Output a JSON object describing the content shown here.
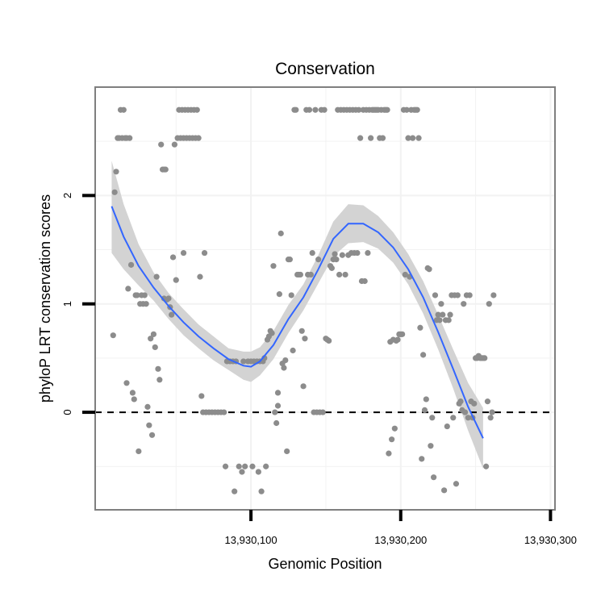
{
  "chart_data": {
    "type": "scatter",
    "title": "Conservation",
    "xlabel": "Genomic Position",
    "ylabel": "phyloP LRT conservation scores",
    "x_ticks": [
      {
        "value": 13930100,
        "label": "13,930,100"
      },
      {
        "value": 13930200,
        "label": "13,930,200"
      },
      {
        "value": 13930300,
        "label": "13,930,300"
      }
    ],
    "y_ticks": [
      {
        "value": 0,
        "label": "0"
      },
      {
        "value": 1,
        "label": "1"
      },
      {
        "value": 2,
        "label": "2"
      }
    ],
    "xlim": [
      13929996,
      13930303
    ],
    "ylim": [
      -0.9,
      3.0
    ],
    "grid": true,
    "reference_line": {
      "y": 0,
      "style": "dashed",
      "color": "#000000"
    },
    "colors": {
      "points": "#8c8c8c",
      "smooth_line": "#3366ff",
      "confidence_band": "#d3d3d3",
      "grid": "#f2f2f2",
      "panel_border": "#7f7f7f"
    },
    "points": [
      {
        "x": 13930008,
        "y": 0.71
      },
      {
        "x": 13930009,
        "y": 2.03
      },
      {
        "x": 13930010,
        "y": 2.22
      },
      {
        "x": 13930011,
        "y": 2.53
      },
      {
        "x": 13930012,
        "y": 2.53
      },
      {
        "x": 13930013,
        "y": 2.79
      },
      {
        "x": 13930014,
        "y": 2.53
      },
      {
        "x": 13930015,
        "y": 2.79
      },
      {
        "x": 13930016,
        "y": 2.53
      },
      {
        "x": 13930017,
        "y": 2.53
      },
      {
        "x": 13930017,
        "y": 0.27
      },
      {
        "x": 13930018,
        "y": 1.14
      },
      {
        "x": 13930019,
        "y": 2.53
      },
      {
        "x": 13930020,
        "y": 1.36
      },
      {
        "x": 13930021,
        "y": 0.18
      },
      {
        "x": 13930022,
        "y": 0.12
      },
      {
        "x": 13930023,
        "y": 1.08
      },
      {
        "x": 13930024,
        "y": 1.08
      },
      {
        "x": 13930025,
        "y": -0.36
      },
      {
        "x": 13930026,
        "y": 1.0
      },
      {
        "x": 13930027,
        "y": 1.08
      },
      {
        "x": 13930028,
        "y": 1.0
      },
      {
        "x": 13930029,
        "y": 1.08
      },
      {
        "x": 13930030,
        "y": 1.0
      },
      {
        "x": 13930031,
        "y": 0.05
      },
      {
        "x": 13930032,
        "y": -0.12
      },
      {
        "x": 13930033,
        "y": 0.68
      },
      {
        "x": 13930034,
        "y": -0.21
      },
      {
        "x": 13930035,
        "y": 0.72
      },
      {
        "x": 13930036,
        "y": 0.6
      },
      {
        "x": 13930037,
        "y": 1.25
      },
      {
        "x": 13930038,
        "y": 0.4
      },
      {
        "x": 13930039,
        "y": 0.3
      },
      {
        "x": 13930040,
        "y": 2.47
      },
      {
        "x": 13930041,
        "y": 2.24
      },
      {
        "x": 13930042,
        "y": 2.24
      },
      {
        "x": 13930042,
        "y": 1.05
      },
      {
        "x": 13930043,
        "y": 2.24
      },
      {
        "x": 13930044,
        "y": 1.04
      },
      {
        "x": 13930045,
        "y": 1.05
      },
      {
        "x": 13930046,
        "y": 0.97
      },
      {
        "x": 13930047,
        "y": 0.9
      },
      {
        "x": 13930048,
        "y": 1.43
      },
      {
        "x": 13930049,
        "y": 2.47
      },
      {
        "x": 13930050,
        "y": 1.22
      },
      {
        "x": 13930051,
        "y": 2.53
      },
      {
        "x": 13930052,
        "y": 2.79
      },
      {
        "x": 13930053,
        "y": 2.53
      },
      {
        "x": 13930054,
        "y": 2.79
      },
      {
        "x": 13930055,
        "y": 2.53
      },
      {
        "x": 13930055,
        "y": 1.47
      },
      {
        "x": 13930056,
        "y": 2.79
      },
      {
        "x": 13930057,
        "y": 2.53
      },
      {
        "x": 13930058,
        "y": 2.79
      },
      {
        "x": 13930059,
        "y": 2.53
      },
      {
        "x": 13930060,
        "y": 2.79
      },
      {
        "x": 13930061,
        "y": 2.53
      },
      {
        "x": 13930062,
        "y": 2.79
      },
      {
        "x": 13930063,
        "y": 2.53
      },
      {
        "x": 13930064,
        "y": 2.79
      },
      {
        "x": 13930065,
        "y": 2.53
      },
      {
        "x": 13930066,
        "y": 1.25
      },
      {
        "x": 13930067,
        "y": 0.15
      },
      {
        "x": 13930068,
        "y": 0.0
      },
      {
        "x": 13930069,
        "y": 1.47
      },
      {
        "x": 13930070,
        "y": 0.0
      },
      {
        "x": 13930072,
        "y": 0.0
      },
      {
        "x": 13930074,
        "y": 0.0
      },
      {
        "x": 13930076,
        "y": 0.0
      },
      {
        "x": 13930078,
        "y": 0.0
      },
      {
        "x": 13930080,
        "y": 0.0
      },
      {
        "x": 13930082,
        "y": 0.0
      },
      {
        "x": 13930083,
        "y": -0.5
      },
      {
        "x": 13930084,
        "y": 0.47
      },
      {
        "x": 13930086,
        "y": 0.47
      },
      {
        "x": 13930088,
        "y": 0.47
      },
      {
        "x": 13930089,
        "y": -0.73
      },
      {
        "x": 13930090,
        "y": 0.47
      },
      {
        "x": 13930092,
        "y": -0.5
      },
      {
        "x": 13930094,
        "y": -0.55
      },
      {
        "x": 13930095,
        "y": 0.47
      },
      {
        "x": 13930096,
        "y": -0.5
      },
      {
        "x": 13930098,
        "y": 0.47
      },
      {
        "x": 13930100,
        "y": 0.47
      },
      {
        "x": 13930101,
        "y": -0.5
      },
      {
        "x": 13930102,
        "y": 0.47
      },
      {
        "x": 13930104,
        "y": 0.47
      },
      {
        "x": 13930105,
        "y": -0.55
      },
      {
        "x": 13930106,
        "y": 0.47
      },
      {
        "x": 13930107,
        "y": -0.73
      },
      {
        "x": 13930108,
        "y": 0.47
      },
      {
        "x": 13930109,
        "y": 0.5
      },
      {
        "x": 13930110,
        "y": -0.5
      },
      {
        "x": 13930111,
        "y": 0.67
      },
      {
        "x": 13930112,
        "y": 0.7
      },
      {
        "x": 13930113,
        "y": 0.75
      },
      {
        "x": 13930114,
        "y": 0.73
      },
      {
        "x": 13930115,
        "y": 1.35
      },
      {
        "x": 13930116,
        "y": 0.0
      },
      {
        "x": 13930117,
        "y": -0.1
      },
      {
        "x": 13930118,
        "y": 0.06
      },
      {
        "x": 13930118,
        "y": 0.18
      },
      {
        "x": 13930119,
        "y": 1.09
      },
      {
        "x": 13930120,
        "y": 1.65
      },
      {
        "x": 13930121,
        "y": 0.45
      },
      {
        "x": 13930122,
        "y": 0.41
      },
      {
        "x": 13930123,
        "y": 0.48
      },
      {
        "x": 13930124,
        "y": -0.36
      },
      {
        "x": 13930125,
        "y": 1.41
      },
      {
        "x": 13930126,
        "y": 1.41
      },
      {
        "x": 13930127,
        "y": 1.08
      },
      {
        "x": 13930128,
        "y": 0.57
      },
      {
        "x": 13930129,
        "y": 2.79
      },
      {
        "x": 13930130,
        "y": 2.79
      },
      {
        "x": 13930131,
        "y": 1.27
      },
      {
        "x": 13930132,
        "y": 1.27
      },
      {
        "x": 13930133,
        "y": 1.27
      },
      {
        "x": 13930134,
        "y": 0.75
      },
      {
        "x": 13930135,
        "y": 0.24
      },
      {
        "x": 13930136,
        "y": 0.68
      },
      {
        "x": 13930137,
        "y": 2.79
      },
      {
        "x": 13930138,
        "y": 1.27
      },
      {
        "x": 13930139,
        "y": 2.79
      },
      {
        "x": 13930140,
        "y": 1.27
      },
      {
        "x": 13930141,
        "y": 1.47
      },
      {
        "x": 13930142,
        "y": 0.0
      },
      {
        "x": 13930143,
        "y": 2.79
      },
      {
        "x": 13930144,
        "y": 0.0
      },
      {
        "x": 13930145,
        "y": 1.41
      },
      {
        "x": 13930146,
        "y": 0.0
      },
      {
        "x": 13930147,
        "y": 2.79
      },
      {
        "x": 13930148,
        "y": 0.0
      },
      {
        "x": 13930149,
        "y": 2.79
      },
      {
        "x": 13930150,
        "y": 0.68
      },
      {
        "x": 13930151,
        "y": 0.67
      },
      {
        "x": 13930152,
        "y": 0.66
      },
      {
        "x": 13930153,
        "y": 1.35
      },
      {
        "x": 13930154,
        "y": 1.33
      },
      {
        "x": 13930155,
        "y": 1.41
      },
      {
        "x": 13930156,
        "y": 1.46
      },
      {
        "x": 13930157,
        "y": 1.41
      },
      {
        "x": 13930158,
        "y": 2.79
      },
      {
        "x": 13930159,
        "y": 1.27
      },
      {
        "x": 13930160,
        "y": 2.79
      },
      {
        "x": 13930161,
        "y": 1.45
      },
      {
        "x": 13930162,
        "y": 2.79
      },
      {
        "x": 13930163,
        "y": 1.27
      },
      {
        "x": 13930164,
        "y": 2.79
      },
      {
        "x": 13930165,
        "y": 1.45
      },
      {
        "x": 13930166,
        "y": 2.79
      },
      {
        "x": 13930167,
        "y": 1.47
      },
      {
        "x": 13930168,
        "y": 2.79
      },
      {
        "x": 13930169,
        "y": 1.47
      },
      {
        "x": 13930170,
        "y": 2.79
      },
      {
        "x": 13930171,
        "y": 1.47
      },
      {
        "x": 13930172,
        "y": 2.79
      },
      {
        "x": 13930173,
        "y": 2.53
      },
      {
        "x": 13930174,
        "y": 1.21
      },
      {
        "x": 13930175,
        "y": 2.79
      },
      {
        "x": 13930176,
        "y": 1.21
      },
      {
        "x": 13930177,
        "y": 2.79
      },
      {
        "x": 13930178,
        "y": 1.47
      },
      {
        "x": 13930179,
        "y": 2.79
      },
      {
        "x": 13930180,
        "y": 2.53
      },
      {
        "x": 13930181,
        "y": 2.79
      },
      {
        "x": 13930182,
        "y": 2.79
      },
      {
        "x": 13930183,
        "y": 2.79
      },
      {
        "x": 13930184,
        "y": 2.79
      },
      {
        "x": 13930185,
        "y": 2.79
      },
      {
        "x": 13930186,
        "y": 2.53
      },
      {
        "x": 13930187,
        "y": 2.79
      },
      {
        "x": 13930188,
        "y": 2.53
      },
      {
        "x": 13930189,
        "y": 2.79
      },
      {
        "x": 13930190,
        "y": 2.79
      },
      {
        "x": 13930191,
        "y": 2.79
      },
      {
        "x": 13930192,
        "y": -0.38
      },
      {
        "x": 13930193,
        "y": 0.65
      },
      {
        "x": 13930194,
        "y": -0.25
      },
      {
        "x": 13930195,
        "y": 0.67
      },
      {
        "x": 13930196,
        "y": -0.15
      },
      {
        "x": 13930197,
        "y": 0.66
      },
      {
        "x": 13930198,
        "y": 0.67
      },
      {
        "x": 13930199,
        "y": 0.72
      },
      {
        "x": 13930200,
        "y": 0.72
      },
      {
        "x": 13930201,
        "y": 0.72
      },
      {
        "x": 13930202,
        "y": 2.79
      },
      {
        "x": 13930203,
        "y": 1.27
      },
      {
        "x": 13930204,
        "y": 2.79
      },
      {
        "x": 13930205,
        "y": 2.53
      },
      {
        "x": 13930206,
        "y": 1.25
      },
      {
        "x": 13930207,
        "y": 2.79
      },
      {
        "x": 13930208,
        "y": 2.53
      },
      {
        "x": 13930209,
        "y": 2.79
      },
      {
        "x": 13930210,
        "y": 2.79
      },
      {
        "x": 13930211,
        "y": 2.79
      },
      {
        "x": 13930212,
        "y": 2.53
      },
      {
        "x": 13930213,
        "y": 0.78
      },
      {
        "x": 13930214,
        "y": -0.43
      },
      {
        "x": 13930215,
        "y": 0.53
      },
      {
        "x": 13930216,
        "y": 0.02
      },
      {
        "x": 13930217,
        "y": 0.12
      },
      {
        "x": 13930218,
        "y": 1.33
      },
      {
        "x": 13930219,
        "y": 1.32
      },
      {
        "x": 13930220,
        "y": -0.31
      },
      {
        "x": 13930221,
        "y": -0.05
      },
      {
        "x": 13930222,
        "y": -0.6
      },
      {
        "x": 13930223,
        "y": 1.08
      },
      {
        "x": 13930224,
        "y": 0.85
      },
      {
        "x": 13930225,
        "y": 0.9
      },
      {
        "x": 13930226,
        "y": 0.85
      },
      {
        "x": 13930227,
        "y": 1.0
      },
      {
        "x": 13930228,
        "y": 0.9
      },
      {
        "x": 13930229,
        "y": -0.72
      },
      {
        "x": 13930230,
        "y": 0.85
      },
      {
        "x": 13930231,
        "y": -0.13
      },
      {
        "x": 13930232,
        "y": 0.85
      },
      {
        "x": 13930233,
        "y": 0.9
      },
      {
        "x": 13930234,
        "y": 1.08
      },
      {
        "x": 13930235,
        "y": -0.05
      },
      {
        "x": 13930236,
        "y": 1.08
      },
      {
        "x": 13930237,
        "y": -0.66
      },
      {
        "x": 13930238,
        "y": 1.08
      },
      {
        "x": 13930239,
        "y": 0.08
      },
      {
        "x": 13930240,
        "y": 0.1
      },
      {
        "x": 13930241,
        "y": 0.02
      },
      {
        "x": 13930242,
        "y": 1.0
      },
      {
        "x": 13930243,
        "y": 0.0
      },
      {
        "x": 13930244,
        "y": 1.08
      },
      {
        "x": 13930245,
        "y": -0.05
      },
      {
        "x": 13930246,
        "y": 1.08
      },
      {
        "x": 13930247,
        "y": 0.1
      },
      {
        "x": 13930248,
        "y": -0.05
      },
      {
        "x": 13930249,
        "y": 0.08
      },
      {
        "x": 13930250,
        "y": 0.5
      },
      {
        "x": 13930251,
        "y": 0.5
      },
      {
        "x": 13930252,
        "y": 0.52
      },
      {
        "x": 13930253,
        "y": 0.5
      },
      {
        "x": 13930254,
        "y": 0.5
      },
      {
        "x": 13930255,
        "y": 0.5
      },
      {
        "x": 13930256,
        "y": 0.5
      },
      {
        "x": 13930257,
        "y": -0.5
      },
      {
        "x": 13930258,
        "y": 0.1
      },
      {
        "x": 13930259,
        "y": 1.0
      },
      {
        "x": 13930260,
        "y": -0.05
      },
      {
        "x": 13930261,
        "y": 0.0
      },
      {
        "x": 13930262,
        "y": 1.08
      }
    ],
    "smooth_line": [
      {
        "x": 13930007,
        "y": 1.9,
        "ymin": 1.47,
        "ymax": 2.32
      },
      {
        "x": 13930015,
        "y": 1.62,
        "ymin": 1.32,
        "ymax": 1.92
      },
      {
        "x": 13930025,
        "y": 1.35,
        "ymin": 1.17,
        "ymax": 1.55
      },
      {
        "x": 13930035,
        "y": 1.15,
        "ymin": 1.03,
        "ymax": 1.29
      },
      {
        "x": 13930045,
        "y": 0.98,
        "ymin": 0.86,
        "ymax": 1.1
      },
      {
        "x": 13930055,
        "y": 0.83,
        "ymin": 0.71,
        "ymax": 0.95
      },
      {
        "x": 13930065,
        "y": 0.7,
        "ymin": 0.59,
        "ymax": 0.81
      },
      {
        "x": 13930075,
        "y": 0.59,
        "ymin": 0.48,
        "ymax": 0.7
      },
      {
        "x": 13930085,
        "y": 0.49,
        "ymin": 0.39,
        "ymax": 0.59
      },
      {
        "x": 13930095,
        "y": 0.43,
        "ymin": 0.3,
        "ymax": 0.56
      },
      {
        "x": 13930100,
        "y": 0.42,
        "ymin": 0.28,
        "ymax": 0.56
      },
      {
        "x": 13930106,
        "y": 0.47,
        "ymin": 0.34,
        "ymax": 0.6
      },
      {
        "x": 13930115,
        "y": 0.62,
        "ymin": 0.49,
        "ymax": 0.75
      },
      {
        "x": 13930125,
        "y": 0.86,
        "ymin": 0.73,
        "ymax": 0.99
      },
      {
        "x": 13930135,
        "y": 1.06,
        "ymin": 0.94,
        "ymax": 1.18
      },
      {
        "x": 13930145,
        "y": 1.32,
        "ymin": 1.19,
        "ymax": 1.45
      },
      {
        "x": 13930155,
        "y": 1.6,
        "ymin": 1.44,
        "ymax": 1.76
      },
      {
        "x": 13930165,
        "y": 1.74,
        "ymin": 1.56,
        "ymax": 1.92
      },
      {
        "x": 13930175,
        "y": 1.74,
        "ymin": 1.57,
        "ymax": 1.91
      },
      {
        "x": 13930185,
        "y": 1.66,
        "ymin": 1.51,
        "ymax": 1.81
      },
      {
        "x": 13930195,
        "y": 1.52,
        "ymin": 1.38,
        "ymax": 1.66
      },
      {
        "x": 13930205,
        "y": 1.32,
        "ymin": 1.18,
        "ymax": 1.46
      },
      {
        "x": 13930215,
        "y": 1.06,
        "ymin": 0.91,
        "ymax": 1.21
      },
      {
        "x": 13930225,
        "y": 0.74,
        "ymin": 0.58,
        "ymax": 0.9
      },
      {
        "x": 13930235,
        "y": 0.4,
        "ymin": 0.22,
        "ymax": 0.58
      },
      {
        "x": 13930245,
        "y": 0.05,
        "ymin": -0.17,
        "ymax": 0.27
      },
      {
        "x": 13930255,
        "y": -0.24,
        "ymin": -0.52,
        "ymax": 0.04
      }
    ]
  }
}
